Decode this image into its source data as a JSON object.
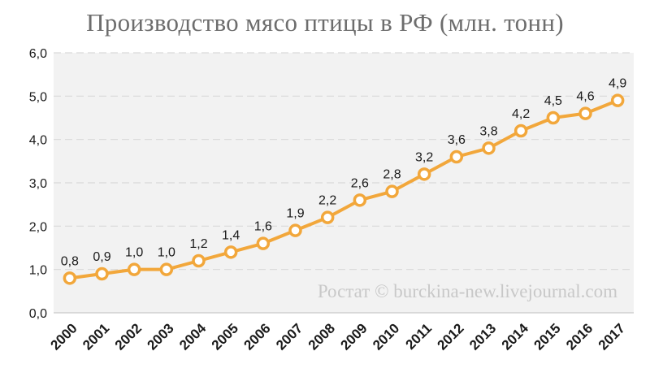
{
  "colors": {
    "line": "#F2A73B",
    "marker_fill": "#FFFFFF",
    "plot_bg": "#F2F2F2",
    "grid": "#D9D9D9",
    "title": "#6D6D6D",
    "watermark": "#C8C8C8"
  },
  "watermark": "Ростат © burckina-new.livejournal.com",
  "chart_data": {
    "type": "line",
    "title": "Производство мясо птицы в РФ (млн. тонн)",
    "xlabel": "",
    "ylabel": "",
    "categories": [
      "2000",
      "2001",
      "2002",
      "2003",
      "2004",
      "2005",
      "2006",
      "2007",
      "2008",
      "2009",
      "2010",
      "2011",
      "2012",
      "2013",
      "2014",
      "2015",
      "2016",
      "2017"
    ],
    "series": [
      {
        "values": [
          0.8,
          0.9,
          1.0,
          1.0,
          1.2,
          1.4,
          1.6,
          1.9,
          2.2,
          2.6,
          2.8,
          3.2,
          3.6,
          3.8,
          4.2,
          4.5,
          4.6,
          4.9
        ],
        "labels": [
          "0,8",
          "0,9",
          "1,0",
          "1,0",
          "1,2",
          "1,4",
          "1,6",
          "1,9",
          "2,2",
          "2,6",
          "2,8",
          "3,2",
          "3,6",
          "3,8",
          "4,2",
          "4,5",
          "4,6",
          "4,9"
        ]
      }
    ],
    "ylim": [
      0,
      6
    ],
    "yticks": [
      "0,0",
      "1,0",
      "2,0",
      "3,0",
      "4,0",
      "5,0",
      "6,0"
    ],
    "grid": true,
    "legend": "none"
  }
}
